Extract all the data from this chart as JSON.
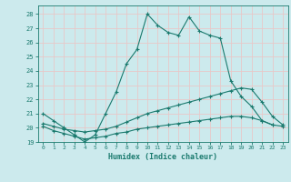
{
  "xlabel": "Humidex (Indice chaleur)",
  "bg_color": "#cceaed",
  "grid_color": "#e8c8c8",
  "line_color": "#1a7a6e",
  "xlim": [
    -0.5,
    23.5
  ],
  "ylim": [
    19,
    28.6
  ],
  "yticks": [
    19,
    20,
    21,
    22,
    23,
    24,
    25,
    26,
    27,
    28
  ],
  "xticks": [
    0,
    1,
    2,
    3,
    4,
    5,
    6,
    7,
    8,
    9,
    10,
    11,
    12,
    13,
    14,
    15,
    16,
    17,
    18,
    19,
    20,
    21,
    22,
    23
  ],
  "series1_x": [
    0,
    1,
    2,
    3,
    4,
    5,
    6,
    7,
    8,
    9,
    10,
    11,
    12,
    13,
    14,
    15,
    16,
    17,
    18,
    19,
    20,
    21,
    22
  ],
  "series1_y": [
    21.0,
    20.5,
    20.0,
    19.5,
    19.0,
    19.5,
    21.0,
    22.5,
    24.5,
    25.5,
    28.0,
    27.2,
    26.7,
    26.5,
    27.8,
    26.8,
    26.5,
    26.3,
    23.3,
    22.2,
    21.5,
    20.5,
    20.2
  ],
  "series2_x": [
    0,
    1,
    2,
    3,
    4,
    5,
    6,
    7,
    8,
    9,
    10,
    11,
    12,
    13,
    14,
    15,
    16,
    17,
    18,
    19,
    20,
    21,
    22,
    23
  ],
  "series2_y": [
    20.3,
    20.1,
    19.9,
    19.8,
    19.7,
    19.8,
    19.9,
    20.1,
    20.4,
    20.7,
    21.0,
    21.2,
    21.4,
    21.6,
    21.8,
    22.0,
    22.2,
    22.4,
    22.6,
    22.8,
    22.7,
    21.8,
    20.8,
    20.2
  ],
  "series3_x": [
    0,
    1,
    2,
    3,
    4,
    5,
    6,
    7,
    8,
    9,
    10,
    11,
    12,
    13,
    14,
    15,
    16,
    17,
    18,
    19,
    20,
    21,
    22,
    23
  ],
  "series3_y": [
    20.1,
    19.8,
    19.6,
    19.4,
    19.2,
    19.3,
    19.4,
    19.6,
    19.7,
    19.9,
    20.0,
    20.1,
    20.2,
    20.3,
    20.4,
    20.5,
    20.6,
    20.7,
    20.8,
    20.8,
    20.7,
    20.5,
    20.2,
    20.1
  ]
}
